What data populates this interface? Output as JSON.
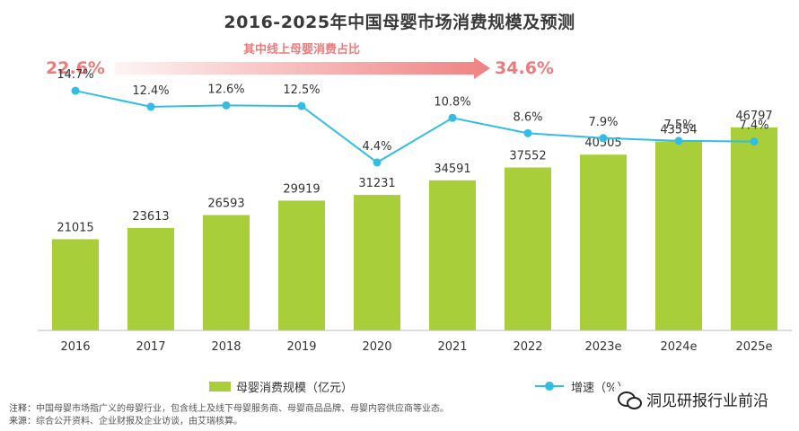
{
  "chart_data": {
    "type": "bar+line",
    "title": "2016-2025年中国母婴市场消费规模及预测",
    "categories": [
      "2016",
      "2017",
      "2018",
      "2019",
      "2020",
      "2021",
      "2022",
      "2023e",
      "2024e",
      "2025e"
    ],
    "series": [
      {
        "name": "母婴消费规模（亿元）",
        "type": "bar",
        "color": "#a8cf3a",
        "values": [
          21015,
          23613,
          26593,
          29919,
          31231,
          34591,
          37552,
          40505,
          43554,
          46797
        ]
      },
      {
        "name": "增速（%）",
        "type": "line",
        "color": "#33bde3",
        "values": [
          14.7,
          12.4,
          12.6,
          12.5,
          4.4,
          10.8,
          8.6,
          7.9,
          7.5,
          7.4
        ],
        "labels": [
          "14.7%",
          "12.4%",
          "12.6%",
          "12.5%",
          "4.4%",
          "10.8%",
          "8.6%",
          "7.9%",
          "7.5%",
          "7.4%"
        ]
      }
    ],
    "annotation": {
      "label": "其中线上母婴消费占比",
      "start": "22.6%",
      "end": "34.6%",
      "color": "#ee7b7b"
    },
    "bar_ylim": [
      0,
      60000
    ],
    "line_ylim": [
      0,
      20
    ],
    "legend_position": "bottom"
  },
  "footer": {
    "note_label": "注释：",
    "note_text": "中国母婴市场指广义的母婴行业，包含线上及线下母婴服务商、母婴商品品牌、母婴内容供应商等业态。",
    "source_label": "来源：",
    "source_text": "综合公开资料、企业财报及企业访谈，由艾瑞核算。"
  },
  "watermark": {
    "text": "洞见研报行业前沿",
    "icon": "wechat-icon"
  },
  "colors": {
    "bar": "#a8cf3a",
    "line": "#33bde3",
    "annotation": "#ee7b7b",
    "axis": "#bfbfbf"
  }
}
